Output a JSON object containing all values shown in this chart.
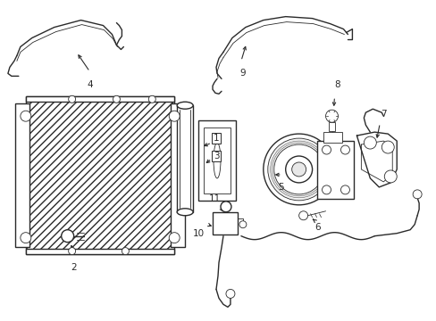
{
  "background_color": "#ffffff",
  "line_color": "#2a2a2a",
  "label_color": "#000000",
  "fig_width": 4.89,
  "fig_height": 3.6,
  "dpi": 100,
  "lw_main": 1.0,
  "lw_thin": 0.6,
  "lw_thick": 1.4,
  "font_size": 7.5
}
